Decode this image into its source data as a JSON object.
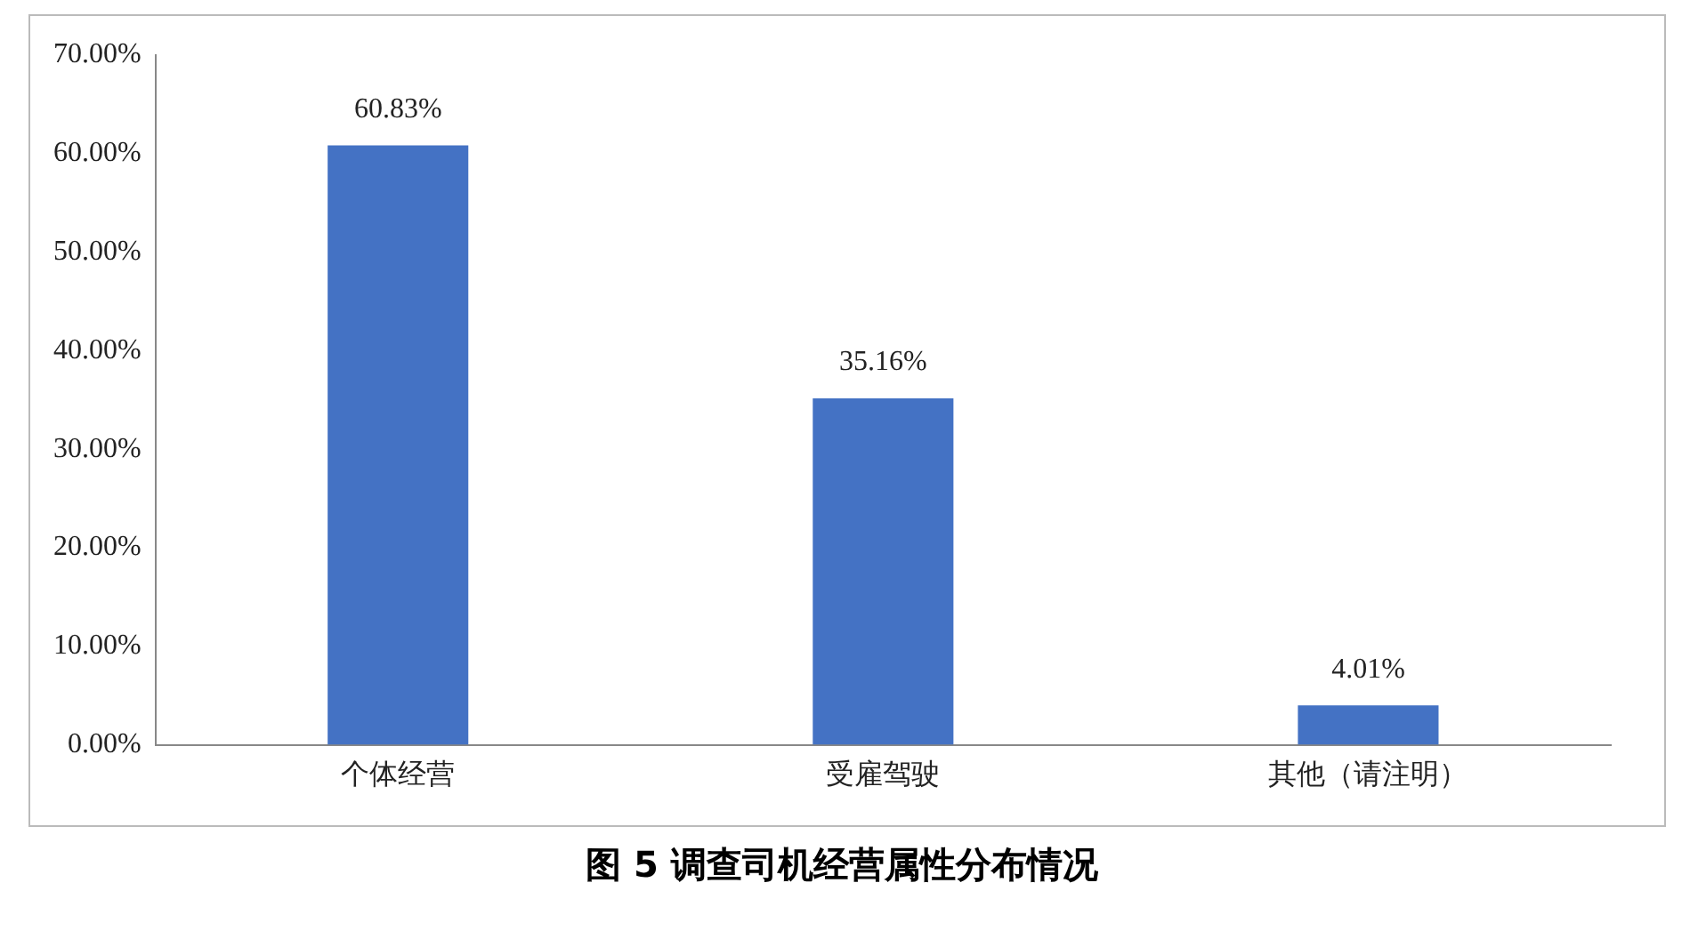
{
  "chart_data": {
    "type": "bar",
    "title": "图 5 调查司机经营属性分布情况",
    "categories": [
      "个体经营",
      "受雇驾驶",
      "其他（请注明）"
    ],
    "values": [
      60.83,
      35.16,
      4.01
    ],
    "value_labels": [
      "60.83%",
      "35.16%",
      "4.01%"
    ],
    "color": "#4472c4",
    "ylim": [
      0,
      70
    ],
    "yticks": [
      {
        "value": 0,
        "label": "0.00%"
      },
      {
        "value": 10,
        "label": "10.00%"
      },
      {
        "value": 20,
        "label": "20.00%"
      },
      {
        "value": 30,
        "label": "30.00%"
      },
      {
        "value": 40,
        "label": "40.00%"
      },
      {
        "value": 50,
        "label": "50.00%"
      },
      {
        "value": 60,
        "label": "60.00%"
      },
      {
        "value": 70,
        "label": "70.00%"
      }
    ],
    "grid": false,
    "legend": false
  }
}
